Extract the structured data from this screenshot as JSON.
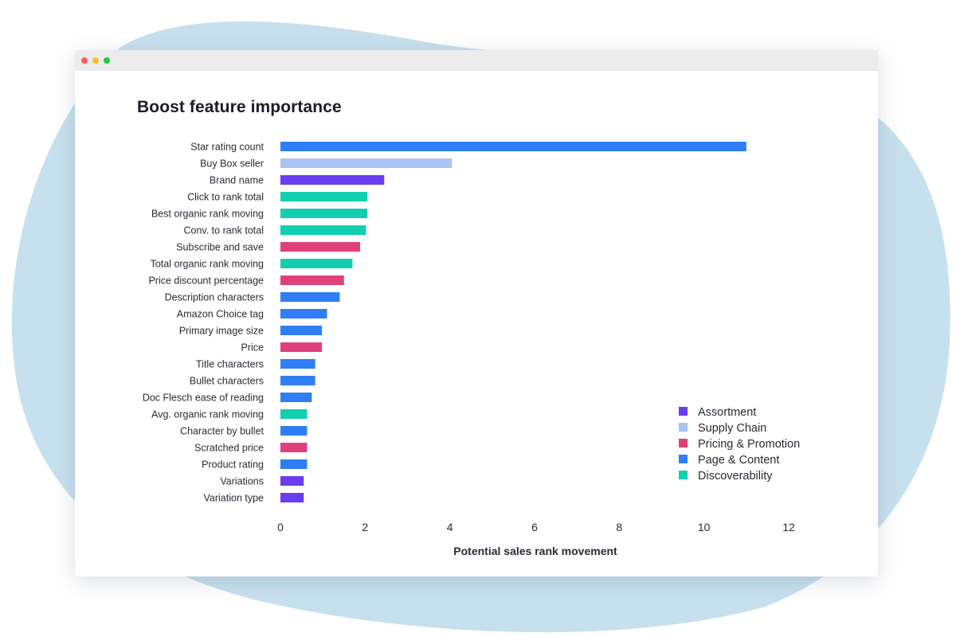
{
  "chart_data": {
    "type": "bar",
    "orientation": "horizontal",
    "title": "Boost feature importance",
    "xlabel": "Potential sales rank movement",
    "ylabel": "",
    "xlim": [
      0,
      12
    ],
    "xticks": [
      0,
      2,
      4,
      6,
      8,
      10,
      12
    ],
    "grid": false,
    "legend_position": "bottom-right",
    "groups": [
      {
        "name": "Assortment",
        "color": "#6a3df0"
      },
      {
        "name": "Supply Chain",
        "color": "#a9c4f2"
      },
      {
        "name": "Pricing & Promotion",
        "color": "#e0407a"
      },
      {
        "name": "Page & Content",
        "color": "#2f7ef5"
      },
      {
        "name": "Discoverability",
        "color": "#12cfb0"
      }
    ],
    "bars": [
      {
        "label": "Star rating count",
        "value": 11.0,
        "group": "Page & Content"
      },
      {
        "label": "Buy Box seller",
        "value": 4.05,
        "group": "Supply Chain"
      },
      {
        "label": "Brand name",
        "value": 2.45,
        "group": "Assortment"
      },
      {
        "label": "Click to rank total",
        "value": 2.05,
        "group": "Discoverability"
      },
      {
        "label": "Best organic rank moving",
        "value": 2.05,
        "group": "Discoverability"
      },
      {
        "label": "Conv. to rank total",
        "value": 2.02,
        "group": "Discoverability"
      },
      {
        "label": "Subscribe and save",
        "value": 1.88,
        "group": "Pricing & Promotion"
      },
      {
        "label": "Total organic rank moving",
        "value": 1.7,
        "group": "Discoverability"
      },
      {
        "label": "Price discount percentage",
        "value": 1.5,
        "group": "Pricing & Promotion"
      },
      {
        "label": "Description characters",
        "value": 1.4,
        "group": "Page & Content"
      },
      {
        "label": "Amazon Choice tag",
        "value": 1.1,
        "group": "Page & Content"
      },
      {
        "label": "Primary image size",
        "value": 0.98,
        "group": "Page & Content"
      },
      {
        "label": "Price",
        "value": 0.98,
        "group": "Pricing & Promotion"
      },
      {
        "label": "Title characters",
        "value": 0.82,
        "group": "Page & Content"
      },
      {
        "label": "Bullet characters",
        "value": 0.82,
        "group": "Page & Content"
      },
      {
        "label": "Doc Flesch ease of reading",
        "value": 0.74,
        "group": "Page & Content"
      },
      {
        "label": "Avg. organic rank moving",
        "value": 0.63,
        "group": "Discoverability"
      },
      {
        "label": "Character by bullet",
        "value": 0.63,
        "group": "Page & Content"
      },
      {
        "label": "Scratched price",
        "value": 0.63,
        "group": "Pricing & Promotion"
      },
      {
        "label": "Product rating",
        "value": 0.63,
        "group": "Page & Content"
      },
      {
        "label": "Variations",
        "value": 0.55,
        "group": "Assortment"
      },
      {
        "label": "Variation type",
        "value": 0.55,
        "group": "Assortment"
      }
    ]
  },
  "theme": {
    "blob_color": "#c7e0ee",
    "text_color": "#2a2a35"
  }
}
